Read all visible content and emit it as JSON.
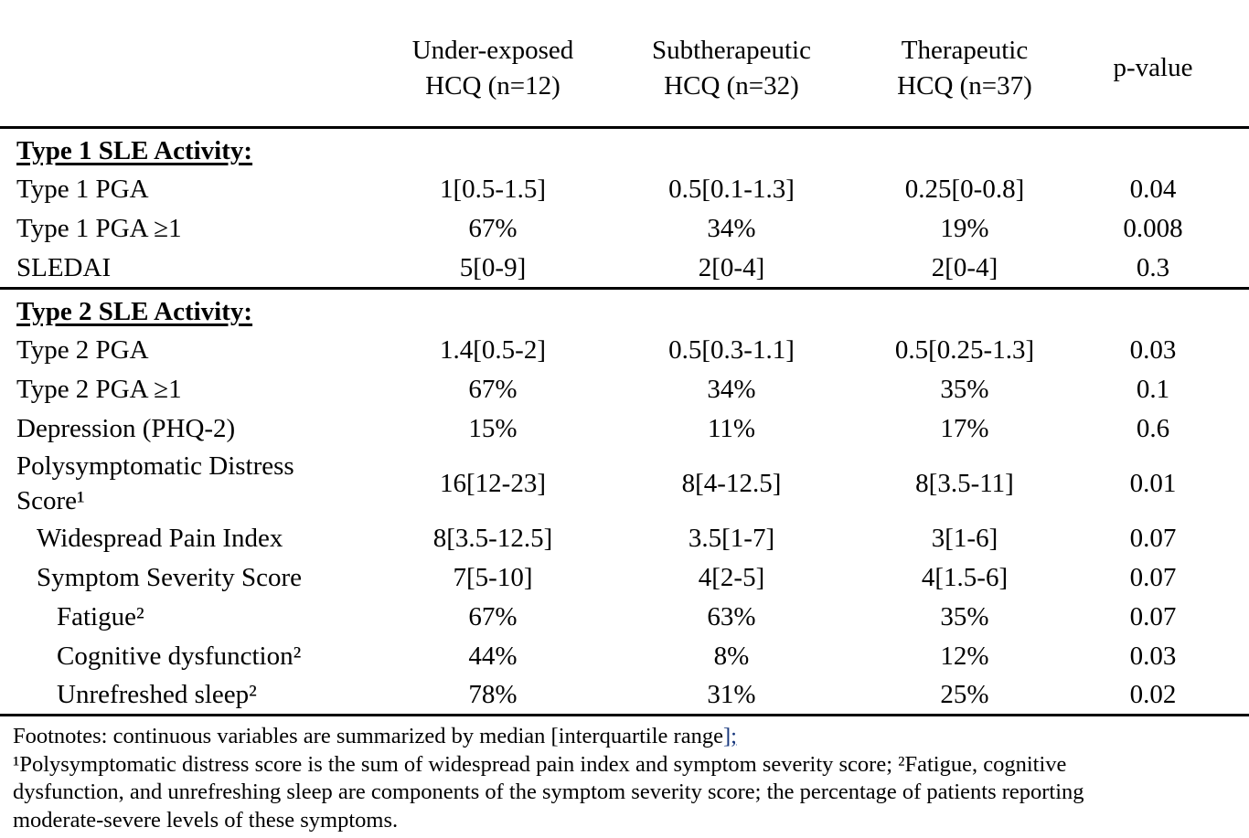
{
  "colors": {
    "text": "#000000",
    "background": "#ffffff",
    "footnote_mark": "#16367c"
  },
  "table": {
    "columns": [
      "Under-exposed\nHCQ (n=12)",
      "Subtherapeutic\nHCQ (n=32)",
      "Therapeutic\nHCQ (n=37)",
      "p-value"
    ],
    "sections": [
      {
        "title": "Type 1 SLE Activity:",
        "rows": [
          {
            "label": "Type 1 PGA",
            "values": [
              "1[0.5-1.5]",
              "0.5[0.1-1.3]",
              "0.25[0-0.8]",
              "0.04"
            ]
          },
          {
            "label": "Type 1 PGA ≥1",
            "values": [
              "67%",
              "34%",
              "19%",
              "0.008"
            ]
          },
          {
            "label": "SLEDAI",
            "values": [
              "5[0-9]",
              "2[0-4]",
              "2[0-4]",
              "0.3"
            ]
          }
        ]
      },
      {
        "title": "Type 2 SLE Activity:",
        "rows": [
          {
            "label": "Type 2 PGA",
            "values": [
              "1.4[0.5-2]",
              "0.5[0.3-1.1]",
              "0.5[0.25-1.3]",
              "0.03"
            ]
          },
          {
            "label": "Type 2 PGA ≥1",
            "values": [
              "67%",
              "34%",
              "35%",
              "0.1"
            ]
          },
          {
            "label": "Depression (PHQ-2)",
            "values": [
              "15%",
              "11%",
              "17%",
              "0.6"
            ]
          },
          {
            "label": "Polysymptomatic Distress\nScore¹",
            "values": [
              "16[12-23]",
              "8[4-12.5]",
              "8[3.5-11]",
              "0.01"
            ]
          },
          {
            "label": "Widespread Pain Index",
            "indent": 1,
            "values": [
              "8[3.5-12.5]",
              "3.5[1-7]",
              "3[1-6]",
              "0.07"
            ]
          },
          {
            "label": "Symptom Severity Score",
            "indent": 1,
            "values": [
              "7[5-10]",
              "4[2-5]",
              "4[1.5-6]",
              "0.07"
            ]
          },
          {
            "label": "Fatigue²",
            "indent": 2,
            "values": [
              "67%",
              "63%",
              "35%",
              "0.07"
            ]
          },
          {
            "label": "Cognitive dysfunction²",
            "indent": 2,
            "values": [
              "44%",
              "8%",
              "12%",
              "0.03"
            ]
          },
          {
            "label": "Unrefreshed sleep²",
            "indent": 2,
            "values": [
              "78%",
              "31%",
              "25%",
              "0.02"
            ]
          }
        ]
      }
    ]
  },
  "footnotes": {
    "line1_main": "Footnotes: continuous variables are summarized by median [interquartile range",
    "line1_marked": "];",
    "line2": "¹Polysymptomatic distress score is the sum of widespread pain index and symptom severity score; ²Fatigue, cognitive",
    "line3": "dysfunction, and unrefreshing sleep are components of the symptom severity score; the percentage of patients reporting",
    "line4": "moderate-severe levels of these symptoms."
  }
}
